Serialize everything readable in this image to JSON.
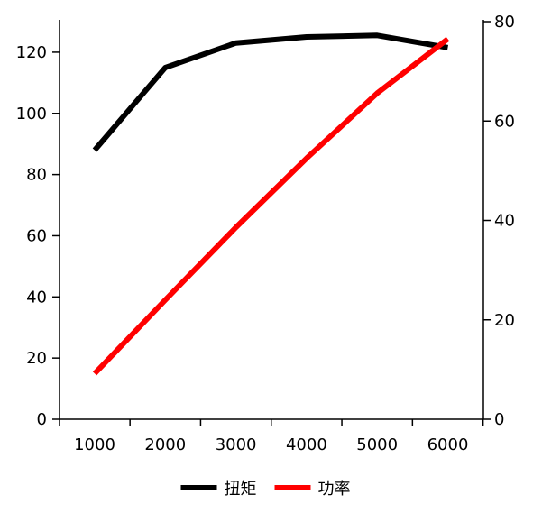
{
  "chart_data": {
    "type": "line",
    "x": [
      1000,
      2000,
      3000,
      4000,
      5000,
      6000
    ],
    "x_ticks": [
      "1000",
      "2000",
      "3000",
      "4000",
      "5000",
      "6000"
    ],
    "y_left_ticks": [
      "0",
      "20",
      "40",
      "60",
      "80",
      "100",
      "120"
    ],
    "y_right_ticks": [
      "0",
      "20",
      "40",
      "60",
      "80"
    ],
    "ylim_left": [
      0,
      130
    ],
    "ylim_right": [
      0,
      80
    ],
    "grid": false,
    "legend_position": "bottom-center",
    "series": [
      {
        "name": "扭矩",
        "axis": "left",
        "color": "#000000",
        "values": [
          88,
          115,
          123,
          125,
          125.5,
          121.5
        ]
      },
      {
        "name": "功率",
        "axis": "right",
        "color": "#ff0000",
        "values": [
          9.2,
          24,
          38.6,
          52.5,
          65.6,
          76.5
        ]
      }
    ]
  }
}
